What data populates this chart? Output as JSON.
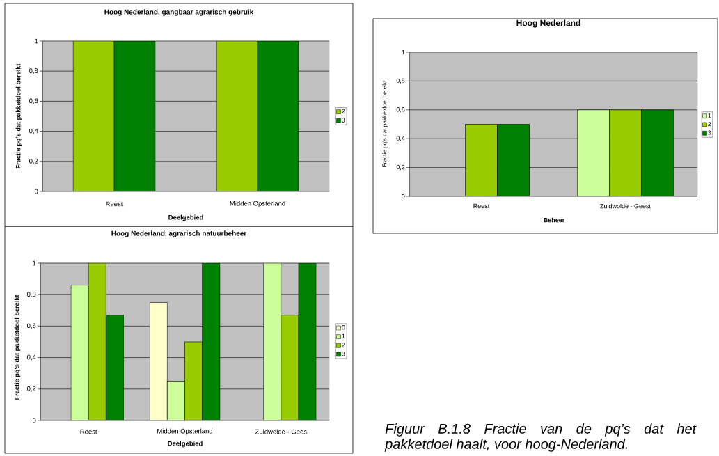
{
  "chart_data": [
    {
      "type": "bar",
      "title": "Hoog Nederland, gangbaar agrarisch gebruik",
      "xlabel": "Deelgebied",
      "ylabel": "Fractie pq's dat pakketdoel bereikt",
      "categories": [
        "Reest",
        "Midden Opsterland"
      ],
      "series": [
        {
          "name": "2",
          "color": "#99cc00",
          "values": [
            1,
            1
          ]
        },
        {
          "name": "3",
          "color": "#008000",
          "values": [
            1,
            1
          ]
        }
      ],
      "ylim": [
        0,
        1
      ],
      "yticks": [
        0,
        {
          "value": 0.2,
          "label": "0,2"
        },
        {
          "value": 0.4,
          "label": "0,4"
        },
        {
          "value": 0.6,
          "label": "0,6"
        },
        {
          "value": 0.8,
          "label": "0,8"
        },
        1
      ],
      "grid": "y",
      "legend": "right"
    },
    {
      "type": "bar",
      "title": "Hoog Nederland",
      "xlabel": "Beheer",
      "ylabel": "Fractie pq's dat pakketdoel bereikt",
      "categories": [
        "Reest",
        "Zuidwolde - Geest"
      ],
      "series": [
        {
          "name": "1",
          "color": "#ccff99",
          "values": [
            null,
            0.6
          ]
        },
        {
          "name": "2",
          "color": "#99cc00",
          "values": [
            0.5,
            0.6
          ]
        },
        {
          "name": "3",
          "color": "#008000",
          "values": [
            0.5,
            0.6
          ]
        }
      ],
      "ylim": [
        0,
        1
      ],
      "yticks": [
        0,
        {
          "value": 0.2,
          "label": "0,2"
        },
        {
          "value": 0.4,
          "label": "0,4"
        },
        {
          "value": 0.6,
          "label": "0,6"
        },
        {
          "value": 0.8,
          "label": "0,8"
        },
        1
      ],
      "grid": "y",
      "legend": "right"
    },
    {
      "type": "bar",
      "title": "Hoog Nederland, agrarisch natuurbeheer",
      "xlabel": "Deelgebied",
      "ylabel": "Fractie pq's dat pakketdoel bereikt",
      "categories": [
        "Reest",
        "Midden Opsterland",
        "Zuidwolde - Gees"
      ],
      "series": [
        {
          "name": "0",
          "color": "#ffffcc",
          "values": [
            null,
            0.75,
            null
          ]
        },
        {
          "name": "1",
          "color": "#ccff99",
          "values": [
            0.86,
            0.25,
            1
          ]
        },
        {
          "name": "2",
          "color": "#99cc00",
          "values": [
            1,
            0.5,
            0.67
          ]
        },
        {
          "name": "3",
          "color": "#008000",
          "values": [
            0.67,
            1,
            1
          ]
        }
      ],
      "ylim": [
        0,
        1
      ],
      "yticks": [
        0,
        {
          "value": 0.2,
          "label": "0,2"
        },
        {
          "value": 0.4,
          "label": "0,4"
        },
        {
          "value": 0.6,
          "label": "0,6"
        },
        {
          "value": 0.8,
          "label": "0,8"
        },
        1
      ],
      "grid": "y",
      "legend": "right"
    },
    {
      "type": "other",
      "annotations": [
        "Figuur B.1.8 Fractie van de pq’s dat het pakketdoel haalt, voor hoog-Nederland."
      ]
    }
  ]
}
